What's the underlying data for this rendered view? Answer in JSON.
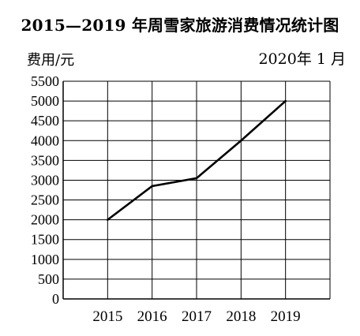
{
  "chart_data": {
    "type": "line",
    "title": "2015—2019 年周雪家旅游消费情况统计图",
    "ylabel": "费用/元",
    "xlabel": "",
    "annotation": "2020年  1  月",
    "categories": [
      "2015",
      "2016",
      "2017",
      "2018",
      "2019"
    ],
    "values": [
      2000,
      2850,
      3050,
      4000,
      5000
    ],
    "ylim": [
      0,
      5500
    ],
    "yticks": [
      0,
      500,
      1000,
      1500,
      2000,
      2500,
      3000,
      3500,
      4000,
      4500,
      5000,
      5500
    ],
    "grid": true,
    "line_color": "#000000"
  }
}
